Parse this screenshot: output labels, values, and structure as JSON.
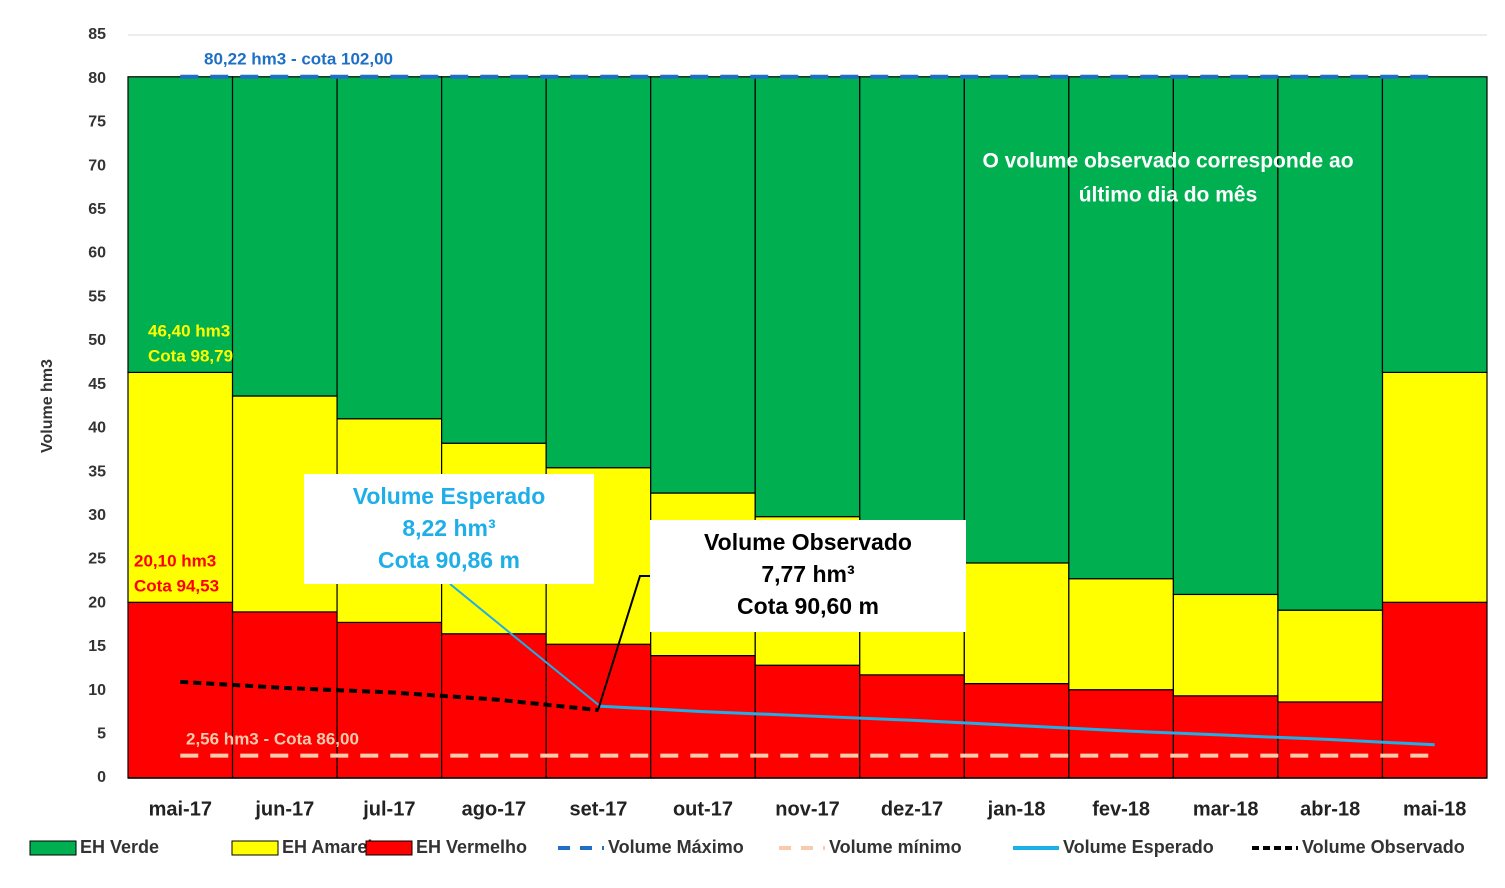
{
  "chart_data": {
    "type": "stacked_bar",
    "y_axis_label": "Volume hm3",
    "categories": [
      "mai-17",
      "jun-17",
      "jul-17",
      "ago-17",
      "set-17",
      "out-17",
      "nov-17",
      "dez-17",
      "jan-18",
      "fev-18",
      "mar-18",
      "abr-18",
      "mai-18"
    ],
    "series": [
      {
        "name": "EH Verde",
        "color": "#00b050",
        "kind": "bar",
        "values": [
          33.82,
          36.52,
          39.12,
          41.92,
          44.72,
          47.62,
          50.32,
          53.02,
          55.62,
          57.42,
          59.22,
          61.02,
          33.82
        ]
      },
      {
        "name": "EH Amarelo",
        "color": "#ffff00",
        "kind": "bar",
        "values": [
          26.3,
          24.7,
          23.3,
          21.8,
          20.2,
          18.6,
          17.0,
          15.4,
          13.8,
          12.7,
          11.6,
          10.5,
          26.3
        ]
      },
      {
        "name": "EH Vermelho",
        "color": "#ff0000",
        "kind": "bar",
        "values": [
          20.1,
          19.0,
          17.8,
          16.5,
          15.3,
          14.0,
          12.9,
          11.8,
          10.8,
          10.1,
          9.4,
          8.7,
          20.1
        ]
      },
      {
        "name": "Volume Máximo",
        "color": "#1f6fc5",
        "kind": "line",
        "dash": "long",
        "values": [
          80.22,
          80.22,
          80.22,
          80.22,
          80.22,
          80.22,
          80.22,
          80.22,
          80.22,
          80.22,
          80.22,
          80.22,
          80.22
        ]
      },
      {
        "name": "Volume mínimo",
        "color": "#f8cbad",
        "kind": "line",
        "dash": "long",
        "values": [
          2.56,
          2.56,
          2.56,
          2.56,
          2.56,
          2.56,
          2.56,
          2.56,
          2.56,
          2.56,
          2.56,
          2.56,
          2.56
        ]
      },
      {
        "name": "Volume Esperado",
        "color": "#1eaee8",
        "kind": "line",
        "dash": "solid",
        "values": [
          null,
          null,
          null,
          null,
          8.22,
          7.6,
          7.1,
          6.6,
          6.0,
          5.4,
          4.9,
          4.4,
          3.8
        ]
      },
      {
        "name": "Volume Observado",
        "color": "#000000",
        "kind": "line",
        "dash": "short",
        "values": [
          11.0,
          10.3,
          9.8,
          9.0,
          7.77,
          null,
          null,
          null,
          null,
          null,
          null,
          null,
          null
        ]
      }
    ],
    "stack_order": [
      2,
      1,
      0
    ],
    "ylim": [
      0,
      85
    ],
    "yticks": [
      0,
      5,
      10,
      15,
      20,
      25,
      30,
      35,
      40,
      45,
      50,
      55,
      60,
      65,
      70,
      75,
      80,
      85
    ],
    "grid": true,
    "annotations": [
      "80,22 hm3 - cota 102,00",
      "46,40 hm3",
      "Cota 98,79",
      "20,10 hm3",
      "Cota 94,53",
      "2,56 hm3 - Cota 86,00",
      "O volume observado corresponde ao",
      "último dia do mês"
    ],
    "callouts": [
      {
        "lines": [
          "Volume Esperado",
          "8,22 hm³",
          "Cota 90,86 m"
        ],
        "color": "#1eaee8"
      },
      {
        "lines": [
          "Volume Observado",
          "7,77 hm³",
          "Cota 90,60 m"
        ],
        "color": "#000000"
      }
    ]
  }
}
